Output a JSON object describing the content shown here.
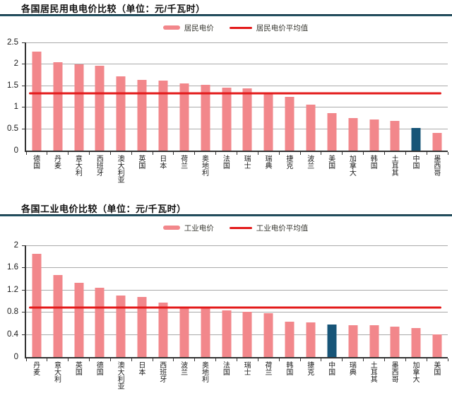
{
  "colors": {
    "bar": "#f2878b",
    "bar_highlight": "#175578",
    "avg_line": "#e31a1a",
    "grid": "#aaaaaa",
    "axis": "#333333"
  },
  "chart_data": [
    {
      "type": "bar",
      "title": "各国居民用电电价比较（单位：元/千瓦时）",
      "legend": [
        "居民电价",
        "居民电价平均值"
      ],
      "categories": [
        "德国",
        "丹麦",
        "意大利",
        "西班牙",
        "澳大利亚",
        "英国",
        "日本",
        "荷兰",
        "奥地利",
        "法国",
        "瑞士",
        "瑞典",
        "捷克",
        "波兰",
        "美国",
        "加拿大",
        "韩国",
        "土耳其",
        "中国",
        "墨西哥"
      ],
      "values": [
        2.28,
        2.04,
        1.99,
        1.96,
        1.71,
        1.64,
        1.61,
        1.56,
        1.52,
        1.46,
        1.43,
        1.31,
        1.25,
        1.07,
        0.87,
        0.76,
        0.72,
        0.69,
        0.53,
        0.41
      ],
      "average_line": 1.33,
      "highlight_category": "中国",
      "xlabel": "",
      "ylabel": "",
      "ylim": [
        0,
        2.5
      ],
      "yticks": [
        0,
        0.5,
        1,
        1.5,
        2,
        2.5
      ],
      "grid": true,
      "legend_position": "top-center"
    },
    {
      "type": "bar",
      "title": "各国工业电价比较（单位：元/千瓦时）",
      "legend": [
        "工业电价",
        "工业电价平均值"
      ],
      "categories": [
        "丹麦",
        "意大利",
        "英国",
        "德国",
        "澳大利亚",
        "日本",
        "西班牙",
        "波兰",
        "奥地利",
        "法国",
        "瑞士",
        "荷兰",
        "韩国",
        "捷克",
        "中国",
        "瑞典",
        "土耳其",
        "墨西哥",
        "加拿大",
        "美国"
      ],
      "values": [
        1.85,
        1.47,
        1.33,
        1.24,
        1.1,
        1.08,
        0.97,
        0.9,
        0.89,
        0.83,
        0.81,
        0.79,
        0.63,
        0.62,
        0.58,
        0.57,
        0.57,
        0.55,
        0.52,
        0.41
      ],
      "average_line": 0.89,
      "highlight_category": "中国",
      "xlabel": "",
      "ylabel": "",
      "ylim": [
        0,
        2
      ],
      "yticks": [
        0,
        0.4,
        0.8,
        1.2,
        1.6,
        2
      ],
      "grid": true,
      "legend_position": "top-center"
    }
  ]
}
